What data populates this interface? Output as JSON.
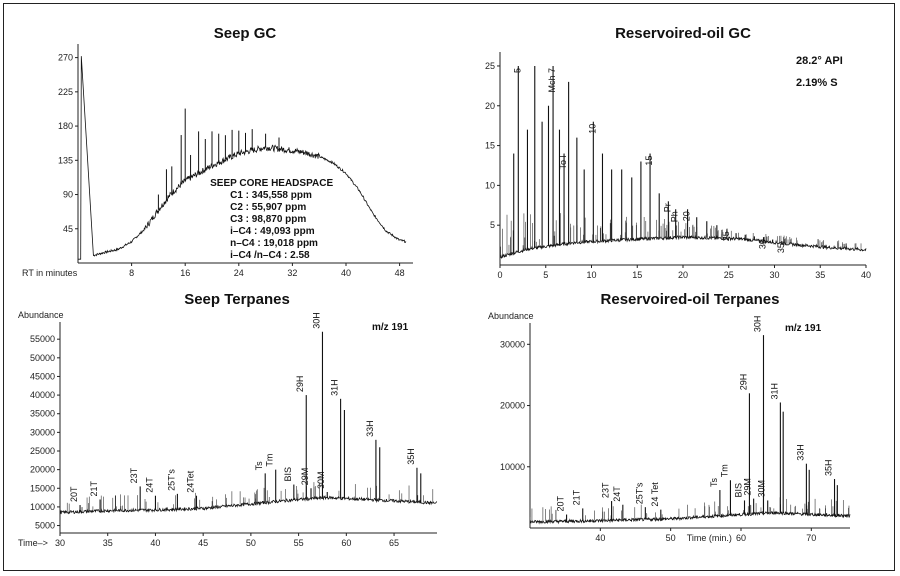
{
  "chart_data": [
    {
      "id": "seep-gc",
      "type": "line",
      "title": "Seep GC",
      "xlabel": "RT in minutes",
      "ylabel": "",
      "xlim": [
        0,
        50
      ],
      "ylim": [
        0,
        280
      ],
      "xticks": [
        8,
        16,
        24,
        32,
        40,
        48
      ],
      "yticks": [
        45,
        90,
        135,
        180,
        225,
        270
      ],
      "annotation_title": "SEEP CORE HEADSPACE",
      "annotation_lines": [
        "C1 : 345,558 ppm",
        "C2 : 55,907 ppm",
        "C3 : 98,870 ppm",
        "i–C4 : 49,093 ppm",
        "n–C4 : 19,018 ppm",
        "i–C4 /n–C4 : 2.58"
      ],
      "envelope": [
        [
          0,
          5
        ],
        [
          0.4,
          5
        ],
        [
          0.5,
          272
        ],
        [
          2.2,
          272
        ],
        [
          2.3,
          10
        ],
        [
          4,
          14
        ],
        [
          6,
          18
        ],
        [
          8,
          28
        ],
        [
          10,
          45
        ],
        [
          12,
          70
        ],
        [
          14,
          92
        ],
        [
          16,
          108
        ],
        [
          18,
          118
        ],
        [
          20,
          128
        ],
        [
          22,
          136
        ],
        [
          24,
          144
        ],
        [
          26,
          148
        ],
        [
          28,
          152
        ],
        [
          30,
          150
        ],
        [
          32,
          148
        ],
        [
          34,
          145
        ],
        [
          36,
          140
        ],
        [
          38,
          132
        ],
        [
          40,
          118
        ],
        [
          42,
          95
        ],
        [
          44,
          65
        ],
        [
          46,
          42
        ],
        [
          48,
          30
        ],
        [
          49,
          28
        ]
      ],
      "spikes": [
        [
          12,
          20
        ],
        [
          13.2,
          40
        ],
        [
          14,
          35
        ],
        [
          15.4,
          65
        ],
        [
          16,
          95
        ],
        [
          16.8,
          30
        ],
        [
          18,
          55
        ],
        [
          19,
          40
        ],
        [
          20,
          45
        ],
        [
          21,
          38
        ],
        [
          22,
          32
        ],
        [
          23,
          35
        ],
        [
          24,
          30
        ],
        [
          25,
          25
        ],
        [
          26,
          28
        ],
        [
          28,
          18
        ],
        [
          30,
          15
        ]
      ]
    },
    {
      "id": "reservoired-oil-gc",
      "type": "line",
      "title": "Reservoired-oil GC",
      "xlabel": "",
      "ylabel": "",
      "xlim": [
        0,
        40
      ],
      "ylim": [
        0,
        26
      ],
      "xticks": [
        0,
        5,
        10,
        15,
        20,
        25,
        30,
        35,
        40
      ],
      "yticks": [
        5,
        10,
        15,
        20,
        25
      ],
      "annotation_lines": [
        "28.2° API",
        "2.19% S"
      ],
      "peaks": [
        {
          "x": 1.5,
          "y": 14,
          "label": ""
        },
        {
          "x": 2.0,
          "y": 25,
          "label": "5"
        },
        {
          "x": 3.0,
          "y": 17,
          "label": ""
        },
        {
          "x": 3.8,
          "y": 25,
          "label": ""
        },
        {
          "x": 4.6,
          "y": 18,
          "label": ""
        },
        {
          "x": 5.3,
          "y": 20,
          "label": ""
        },
        {
          "x": 5.8,
          "y": 25,
          "label": "Mch 7"
        },
        {
          "x": 6.5,
          "y": 17,
          "label": ""
        },
        {
          "x": 7.0,
          "y": 14,
          "label": "To l"
        },
        {
          "x": 7.5,
          "y": 23,
          "label": ""
        },
        {
          "x": 8.4,
          "y": 16,
          "label": ""
        },
        {
          "x": 9.2,
          "y": 12,
          "label": ""
        },
        {
          "x": 10.2,
          "y": 18,
          "label": "10"
        },
        {
          "x": 11.2,
          "y": 14,
          "label": ""
        },
        {
          "x": 12.2,
          "y": 12,
          "label": ""
        },
        {
          "x": 13.3,
          "y": 12,
          "label": ""
        },
        {
          "x": 14.4,
          "y": 11,
          "label": ""
        },
        {
          "x": 15.4,
          "y": 13,
          "label": ""
        },
        {
          "x": 16.4,
          "y": 14,
          "label": "15"
        },
        {
          "x": 17.4,
          "y": 9,
          "label": ""
        },
        {
          "x": 18.4,
          "y": 8,
          "label": "Pr"
        },
        {
          "x": 19.2,
          "y": 7,
          "label": "Ph"
        },
        {
          "x": 20.5,
          "y": 7,
          "label": "20"
        },
        {
          "x": 21.5,
          "y": 6,
          "label": ""
        },
        {
          "x": 22.6,
          "y": 5.5,
          "label": ""
        },
        {
          "x": 23.7,
          "y": 5,
          "label": ""
        },
        {
          "x": 24.8,
          "y": 4.5,
          "label": "25"
        },
        {
          "x": 25.8,
          "y": 4,
          "label": ""
        },
        {
          "x": 26.8,
          "y": 3.8,
          "label": ""
        },
        {
          "x": 27.8,
          "y": 3.6,
          "label": ""
        },
        {
          "x": 28.8,
          "y": 3.5,
          "label": "30"
        },
        {
          "x": 29.8,
          "y": 3.2,
          "label": ""
        },
        {
          "x": 30.8,
          "y": 3.0,
          "label": "35"
        }
      ],
      "baseline": [
        [
          0,
          1
        ],
        [
          3,
          2
        ],
        [
          8,
          2.8
        ],
        [
          14,
          3.2
        ],
        [
          20,
          3.5
        ],
        [
          26,
          3.3
        ],
        [
          32,
          2.6
        ],
        [
          36,
          2.2
        ],
        [
          40,
          1.9
        ]
      ]
    },
    {
      "id": "seep-terpanes",
      "type": "line",
      "title": "Seep Terpanes",
      "ylabel": "Abundance",
      "xlabel": "Time–>",
      "mz": "m/z 191",
      "xlim": [
        30,
        69.5
      ],
      "ylim": [
        3000,
        58000
      ],
      "xticks": [
        30,
        35,
        40,
        45,
        50,
        55,
        60,
        65
      ],
      "yticks": [
        5000,
        10000,
        15000,
        20000,
        25000,
        30000,
        35000,
        40000,
        45000,
        50000,
        55000
      ],
      "xtick_labels": [
        "30",
        "35",
        "40",
        "45",
        "50",
        "55",
        "60",
        "65"
      ],
      "ytick_labels": [
        "5000",
        "10000",
        "15000",
        "20000",
        "25000",
        "30000",
        "35000",
        "40000",
        "45000",
        "50000",
        "55000"
      ],
      "baseline": [
        [
          30,
          8500
        ],
        [
          35,
          9000
        ],
        [
          40,
          9200
        ],
        [
          45,
          9600
        ],
        [
          50,
          10800
        ],
        [
          55,
          12000
        ],
        [
          58,
          12500
        ],
        [
          62,
          12000
        ],
        [
          66,
          11500
        ],
        [
          69.5,
          11000
        ]
      ],
      "peaks": [
        {
          "x": 32.1,
          "y": 10500,
          "label": "20T"
        },
        {
          "x": 34.2,
          "y": 12000,
          "label": "21T"
        },
        {
          "x": 38.4,
          "y": 15500,
          "label": "23T"
        },
        {
          "x": 40.0,
          "y": 13000,
          "label": "24T"
        },
        {
          "x": 42.3,
          "y": 13500,
          "label": "25T's"
        },
        {
          "x": 44.3,
          "y": 13000,
          "label": "24Tet"
        },
        {
          "x": 51.5,
          "y": 19000,
          "label": "Ts"
        },
        {
          "x": 52.6,
          "y": 20000,
          "label": "Tm"
        },
        {
          "x": 54.5,
          "y": 16000,
          "label": "BIS"
        },
        {
          "x": 55.8,
          "y": 40000,
          "label": "29H"
        },
        {
          "x": 56.3,
          "y": 15000,
          "label": "29M"
        },
        {
          "x": 57.5,
          "y": 57000,
          "label": "30H"
        },
        {
          "x": 58.0,
          "y": 14000,
          "label": "30M"
        },
        {
          "x": 59.4,
          "y": 39000,
          "label": "31H"
        },
        {
          "x": 59.8,
          "y": 36000,
          "label": ""
        },
        {
          "x": 63.1,
          "y": 28000,
          "label": "33H"
        },
        {
          "x": 63.5,
          "y": 26000,
          "label": ""
        },
        {
          "x": 67.4,
          "y": 20500,
          "label": "35H"
        },
        {
          "x": 67.8,
          "y": 19000,
          "label": ""
        }
      ]
    },
    {
      "id": "reservoired-oil-terpanes",
      "type": "line",
      "title": "Reservoired-oil Terpanes",
      "ylabel": "Abundance",
      "xlabel": "Time (min.)",
      "mz": "m/z 191",
      "xlim": [
        30,
        75.5
      ],
      "ylim": [
        0,
        32500
      ],
      "xticks": [
        40,
        50,
        60,
        70
      ],
      "yticks": [
        10000,
        20000,
        30000
      ],
      "xtick_labels": [
        "40",
        "50",
        "60",
        "70"
      ],
      "ytick_labels": [
        "10000",
        "20000",
        "30000"
      ],
      "baseline": [
        [
          30,
          1000
        ],
        [
          40,
          1200
        ],
        [
          50,
          1500
        ],
        [
          60,
          2200
        ],
        [
          65,
          2500
        ],
        [
          70,
          2200
        ],
        [
          75.5,
          2000
        ]
      ],
      "peaks": [
        {
          "x": 35.2,
          "y": 2200,
          "label": "20T"
        },
        {
          "x": 37.5,
          "y": 3200,
          "label": "21T"
        },
        {
          "x": 41.6,
          "y": 4400,
          "label": "23T"
        },
        {
          "x": 43.2,
          "y": 3800,
          "label": "24T"
        },
        {
          "x": 46.4,
          "y": 3400,
          "label": "25T's"
        },
        {
          "x": 48.6,
          "y": 3000,
          "label": "24 Tet"
        },
        {
          "x": 57.0,
          "y": 6200,
          "label": "Ts"
        },
        {
          "x": 58.5,
          "y": 7800,
          "label": "Tm"
        },
        {
          "x": 60.5,
          "y": 4500,
          "label": "BIS"
        },
        {
          "x": 61.2,
          "y": 22000,
          "label": "29H"
        },
        {
          "x": 61.8,
          "y": 4800,
          "label": "29M"
        },
        {
          "x": 63.2,
          "y": 31500,
          "label": "30H"
        },
        {
          "x": 63.8,
          "y": 4500,
          "label": "30M"
        },
        {
          "x": 65.6,
          "y": 20500,
          "label": "31H"
        },
        {
          "x": 66.0,
          "y": 19000,
          "label": ""
        },
        {
          "x": 69.3,
          "y": 10500,
          "label": "33H"
        },
        {
          "x": 69.7,
          "y": 9500,
          "label": ""
        },
        {
          "x": 73.3,
          "y": 8000,
          "label": "35H"
        },
        {
          "x": 73.7,
          "y": 7000,
          "label": ""
        }
      ]
    }
  ]
}
